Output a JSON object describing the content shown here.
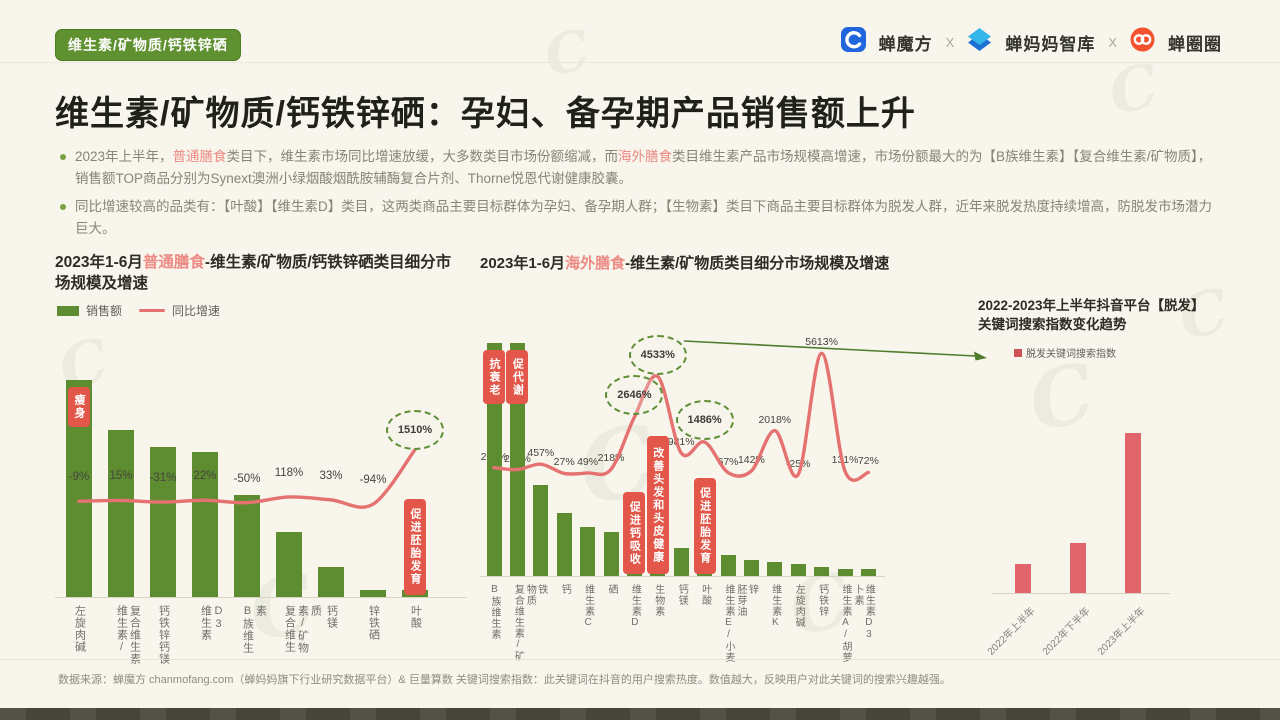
{
  "page": {
    "badge": "维生素/矿物质/钙铁锌硒",
    "header_logos": {
      "brand1": "蝉魔方",
      "sep1": "X",
      "brand2": "蝉妈妈智库",
      "sep2": "X",
      "brand3": "蝉圈圈"
    },
    "title": "维生素/矿物质/钙铁锌硒：孕妇、备孕期产品销售额上升",
    "bullet1": {
      "t1": "2023年上半年，",
      "h1": "普通膳食",
      "t2": "类目下，维生素市场同比增速放缓，大多数类目市场份额缩减，而",
      "h2": "海外膳食",
      "t3": "类目维生素产品市场规模高增速，市场份额最大的为【B族维生素】【复合维生素/矿物质】，销售额TOP商品分别为Synext澳洲小绿烟酸烟酰胺辅酶复合片剂、Thorne悦恩代谢健康胶囊。"
    },
    "bullet2": "同比增速较高的品类有：【叶酸】【维生素D】类目，这两类商品主要目标群体为孕妇、备孕期人群；【生物素】类目下商品主要目标群体为脱发人群，近年来脱发热度持续增高，防脱发市场潜力巨大。",
    "footer": "数据来源：蝉魔方 chanmofang.com（蝉妈妈旗下行业研究数据平台）& 巨量算数 关键词搜索指数：此关键词在抖音的用户搜索热度。数值越大，反映用户对此关键词的搜索兴趣越强。"
  },
  "colors": {
    "bar_green": "#5d8d30",
    "line_pink": "#e57170",
    "tag_red": "#e25749",
    "highlight_pink": "#ed8a84",
    "bar_pink": "#e0666c",
    "arrow_green": "#4e7d2c"
  },
  "chart_data": [
    {
      "id": "ordinary-diet-market",
      "type": "bar+line",
      "title": {
        "prefix": "2023年1-6月",
        "highlight": "普通膳食",
        "suffix": "-维生素/矿物质/钙铁锌硒类目细分市场规模及增速"
      },
      "legend": [
        {
          "label": "销售额",
          "type": "bar"
        },
        {
          "label": "同比增速",
          "type": "line"
        }
      ],
      "categories": [
        "左旋肉碱",
        "维生素/复合维生素",
        "钙铁锌钙镁",
        "维生素D3",
        "B族维生素",
        "复合维生素/矿物质",
        "钙镁",
        "锌铁硒",
        "叶酸"
      ],
      "sales_index": [
        100,
        77,
        69,
        67,
        47,
        30,
        14,
        3,
        3
      ],
      "growth_pct": [
        -9,
        15,
        -31,
        22,
        -50,
        118,
        33,
        -94,
        1510
      ],
      "growth_labels": [
        "-9%",
        "15%",
        "-31%",
        "22%",
        "-50%",
        "118%",
        "33%",
        "-94%",
        "1510%"
      ],
      "circled_points": [
        8
      ],
      "bar_tags": [
        {
          "bar": 0,
          "text": "瘦身"
        },
        {
          "bar": 8,
          "text": "促进胚胎发育"
        }
      ]
    },
    {
      "id": "overseas-diet-market",
      "type": "bar+line",
      "title": {
        "prefix": "2023年1-6月",
        "highlight": "海外膳食",
        "suffix": "-维生素/矿物质类目细分市场规模及增速"
      },
      "legend": [],
      "categories": [
        "B族维生素",
        "复合维生素/矿物质",
        "铁",
        "钙",
        "维生素C",
        "硒",
        "维生素D",
        "生物素",
        "钙镁",
        "叶酸",
        "维生素E/小麦胚芽油",
        "锌",
        "维生素K",
        "左旋肉碱",
        "钙铁锌",
        "维生素A/胡萝卜素",
        "维生素D3"
      ],
      "sales_index": [
        100,
        100,
        39,
        27,
        21,
        19,
        16,
        14,
        12,
        10,
        9,
        7,
        6,
        5,
        4,
        3,
        3
      ],
      "growth_pct": [
        296,
        204,
        457,
        27,
        49,
        218,
        2646,
        4533,
        981,
        1486,
        67,
        142,
        2018,
        -25,
        5613,
        131,
        72
      ],
      "growth_labels": [
        "296%",
        "204%",
        "457%",
        "27%",
        "49%",
        "218%",
        "2646%",
        "4533%",
        "981%",
        "1486%",
        "67%",
        "142%",
        "2018%",
        "-25%",
        "5613%",
        "131%",
        "72%"
      ],
      "circled_points": [
        6,
        7,
        9
      ],
      "bar_tags": [
        {
          "bar": 0,
          "text": "抗衰老"
        },
        {
          "bar": 1,
          "text": "促代谢"
        },
        {
          "bar": 6,
          "text": "促进钙吸收"
        },
        {
          "bar": 7,
          "text": "改善头发和头皮健康"
        },
        {
          "bar": 9,
          "text": "促进胚胎发育"
        }
      ]
    },
    {
      "id": "hairloss-keyword-index",
      "type": "bar",
      "title": {
        "line1": "2022-2023年上半年抖音平台【脱发】",
        "line2": "关键词搜索指数变化趋势"
      },
      "legend": [
        {
          "label": "脱发关键词搜索指数",
          "type": "bar"
        }
      ],
      "categories": [
        "2022年上半年",
        "2022年下半年",
        "2023年上半年"
      ],
      "search_index": [
        18,
        31,
        100
      ]
    }
  ]
}
